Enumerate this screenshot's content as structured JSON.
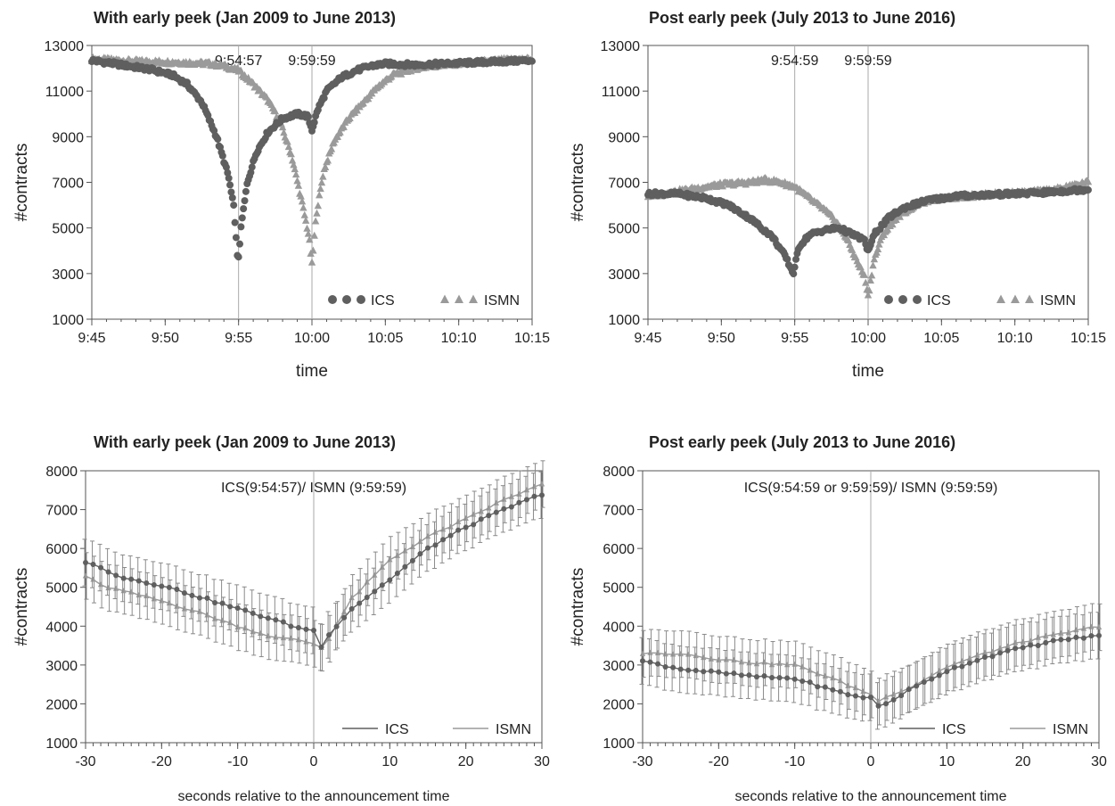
{
  "colors": {
    "ics": "#5f5f5f",
    "ismn": "#9a9a9a",
    "frame": "#555555",
    "vline": "#aaaaaa",
    "errbar": "#8a8a8a"
  },
  "chart_data": [
    {
      "type": "scatter",
      "title": "With early peek (Jan 2009 to June 2013)",
      "xlabel": "time",
      "ylabel": "#contracts",
      "xlim": [
        0,
        30
      ],
      "ylim": [
        1000,
        13000
      ],
      "xticks": [
        0,
        5,
        10,
        15,
        20,
        25,
        30
      ],
      "xticklabels": [
        "9:45",
        "9:50",
        "9:55",
        "10:00",
        "10:05",
        "10:10",
        "10:15"
      ],
      "yticks": [
        1000,
        3000,
        5000,
        7000,
        9000,
        11000,
        13000
      ],
      "yticklabels": [
        "1000",
        "3000",
        "5000",
        "7000",
        "9000",
        "11000",
        "13000"
      ],
      "vlines": [
        10,
        15
      ],
      "annotations": [
        "9:54:57",
        "9:59:59"
      ],
      "legend_position": "bottom-right",
      "legend_labels": [
        "ICS",
        "ISMN"
      ],
      "series": [
        {
          "name": "ICS",
          "marker": "circle",
          "points": [
            [
              0,
              12350
            ],
            [
              2,
              12150
            ],
            [
              4,
              11950
            ],
            [
              5.5,
              11700
            ],
            [
              6.5,
              11300
            ],
            [
              7.5,
              10500
            ],
            [
              8.5,
              9000
            ],
            [
              9.3,
              7300
            ],
            [
              9.7,
              5800
            ],
            [
              9.95,
              3400
            ],
            [
              10.2,
              5200
            ],
            [
              10.6,
              7000
            ],
            [
              11.2,
              8300
            ],
            [
              12,
              9200
            ],
            [
              13,
              9800
            ],
            [
              14,
              10000
            ],
            [
              14.7,
              9900
            ],
            [
              15,
              9300
            ],
            [
              15.4,
              10200
            ],
            [
              16,
              11000
            ],
            [
              17,
              11600
            ],
            [
              18,
              11900
            ],
            [
              19,
              12100
            ],
            [
              20,
              12200
            ],
            [
              22,
              12150
            ],
            [
              24,
              12200
            ],
            [
              26,
              12250
            ],
            [
              28,
              12300
            ],
            [
              30,
              12350
            ]
          ]
        },
        {
          "name": "ISMN",
          "marker": "triangle",
          "points": [
            [
              0,
              12400
            ],
            [
              3,
              12300
            ],
            [
              6,
              12250
            ],
            [
              8,
              12200
            ],
            [
              9,
              12100
            ],
            [
              10,
              11900
            ],
            [
              11,
              11300
            ],
            [
              12,
              10600
            ],
            [
              12.8,
              9700
            ],
            [
              13.6,
              8200
            ],
            [
              14.3,
              6200
            ],
            [
              14.8,
              4600
            ],
            [
              15,
              3400
            ],
            [
              15.3,
              5600
            ],
            [
              15.8,
              7500
            ],
            [
              16.5,
              8800
            ],
            [
              17.5,
              9800
            ],
            [
              18.5,
              10500
            ],
            [
              19.5,
              11200
            ],
            [
              20.5,
              11700
            ],
            [
              22,
              12000
            ],
            [
              24,
              12150
            ],
            [
              26,
              12250
            ],
            [
              28,
              12350
            ],
            [
              30,
              12400
            ]
          ]
        }
      ]
    },
    {
      "type": "scatter",
      "title": "Post early peek (July 2013 to June 2016)",
      "xlabel": "time",
      "ylabel": "#contracts",
      "xlim": [
        0,
        30
      ],
      "ylim": [
        1000,
        13000
      ],
      "xticks": [
        0,
        5,
        10,
        15,
        20,
        25,
        30
      ],
      "xticklabels": [
        "9:45",
        "9:50",
        "9:55",
        "10:00",
        "10:05",
        "10:10",
        "10:15"
      ],
      "yticks": [
        1000,
        3000,
        5000,
        7000,
        9000,
        11000,
        13000
      ],
      "yticklabels": [
        "1000",
        "3000",
        "5000",
        "7000",
        "9000",
        "11000",
        "13000"
      ],
      "vlines": [
        10,
        15
      ],
      "annotations": [
        "9:54:59",
        "9:59:59"
      ],
      "legend_position": "bottom-right",
      "legend_labels": [
        "ICS",
        "ISMN"
      ],
      "series": [
        {
          "name": "ICS",
          "marker": "circle",
          "points": [
            [
              0,
              6500
            ],
            [
              2,
              6500
            ],
            [
              4,
              6300
            ],
            [
              5.5,
              6000
            ],
            [
              7,
              5400
            ],
            [
              8.5,
              4600
            ],
            [
              9.4,
              3700
            ],
            [
              9.9,
              3000
            ],
            [
              10.3,
              4200
            ],
            [
              11,
              4700
            ],
            [
              12,
              4900
            ],
            [
              13,
              5000
            ],
            [
              14,
              4700
            ],
            [
              14.7,
              4500
            ],
            [
              15,
              4000
            ],
            [
              15.5,
              4800
            ],
            [
              16.5,
              5500
            ],
            [
              17.5,
              5900
            ],
            [
              19,
              6200
            ],
            [
              21,
              6400
            ],
            [
              23,
              6450
            ],
            [
              25,
              6500
            ],
            [
              27,
              6550
            ],
            [
              30,
              6700
            ]
          ]
        },
        {
          "name": "ISMN",
          "marker": "triangle",
          "points": [
            [
              0,
              6400
            ],
            [
              3,
              6700
            ],
            [
              5,
              6900
            ],
            [
              7,
              7000
            ],
            [
              8,
              7100
            ],
            [
              9,
              7000
            ],
            [
              10,
              6800
            ],
            [
              11,
              6300
            ],
            [
              12,
              5800
            ],
            [
              12.8,
              5300
            ],
            [
              13.5,
              4600
            ],
            [
              14.2,
              3600
            ],
            [
              14.8,
              2800
            ],
            [
              15,
              2000
            ],
            [
              15.4,
              3600
            ],
            [
              16,
              4700
            ],
            [
              17,
              5500
            ],
            [
              18.5,
              6100
            ],
            [
              20,
              6300
            ],
            [
              22,
              6400
            ],
            [
              24,
              6500
            ],
            [
              26,
              6550
            ],
            [
              28,
              6700
            ],
            [
              30,
              7000
            ]
          ]
        }
      ]
    },
    {
      "type": "line",
      "title": "With early peek (Jan 2009 to June 2013)",
      "xlabel": "seconds relative to the announcement time",
      "ylabel": "#contracts",
      "xlim": [
        -30,
        30
      ],
      "ylim": [
        1000,
        8000
      ],
      "xticks": [
        -30,
        -20,
        -10,
        0,
        10,
        20,
        30
      ],
      "xticklabels": [
        "-30",
        "-20",
        "-10",
        "0",
        "10",
        "20",
        "30"
      ],
      "yticks": [
        1000,
        2000,
        3000,
        4000,
        5000,
        6000,
        7000,
        8000
      ],
      "yticklabels": [
        "1000",
        "2000",
        "3000",
        "4000",
        "5000",
        "6000",
        "7000",
        "8000"
      ],
      "vlines": [
        0
      ],
      "annotations": [
        "ICS(9:54:57)/ ISMN (9:59:59)"
      ],
      "legend_position": "bottom-right",
      "legend_labels": [
        "ICS",
        "ISMN"
      ],
      "errorbar_width": 600,
      "series": [
        {
          "name": "ICS",
          "marker": "circle",
          "anchors": [
            [
              -30,
              5650
            ],
            [
              -28,
              5500
            ],
            [
              -25,
              5250
            ],
            [
              -20,
              5050
            ],
            [
              -15,
              4750
            ],
            [
              -10,
              4450
            ],
            [
              -5,
              4150
            ],
            [
              -2,
              3950
            ],
            [
              0,
              3900
            ],
            [
              1,
              3450
            ],
            [
              2,
              3800
            ],
            [
              5,
              4450
            ],
            [
              10,
              5200
            ],
            [
              15,
              6000
            ],
            [
              20,
              6550
            ],
            [
              25,
              7000
            ],
            [
              30,
              7400
            ]
          ]
        },
        {
          "name": "ISMN",
          "marker": "triangle",
          "anchors": [
            [
              -30,
              5300
            ],
            [
              -28,
              5050
            ],
            [
              -25,
              4900
            ],
            [
              -20,
              4650
            ],
            [
              -15,
              4350
            ],
            [
              -10,
              4000
            ],
            [
              -5,
              3700
            ],
            [
              -2,
              3650
            ],
            [
              0,
              3550
            ],
            [
              1,
              3450
            ],
            [
              2,
              3700
            ],
            [
              5,
              4700
            ],
            [
              10,
              5700
            ],
            [
              15,
              6300
            ],
            [
              20,
              6750
            ],
            [
              25,
              7250
            ],
            [
              30,
              7650
            ]
          ]
        }
      ]
    },
    {
      "type": "line",
      "title": "Post early peek (July 2013 to June 2016)",
      "xlabel": "seconds relative to the announcement time",
      "ylabel": "#contracts",
      "xlim": [
        -30,
        30
      ],
      "ylim": [
        1000,
        8000
      ],
      "xticks": [
        -30,
        -20,
        -10,
        0,
        10,
        20,
        30
      ],
      "xticklabels": [
        "-30",
        "-20",
        "-10",
        "0",
        "10",
        "20",
        "30"
      ],
      "yticks": [
        1000,
        2000,
        3000,
        4000,
        5000,
        6000,
        7000,
        8000
      ],
      "yticklabels": [
        "1000",
        "2000",
        "3000",
        "4000",
        "5000",
        "6000",
        "7000",
        "8000"
      ],
      "vlines": [
        0
      ],
      "annotations": [
        "ICS(9:54:59 or 9:59:59)/ ISMN (9:59:59)"
      ],
      "legend_position": "bottom-right",
      "legend_labels": [
        "ICS",
        "ISMN"
      ],
      "errorbar_width": 600,
      "series": [
        {
          "name": "ICS",
          "marker": "circle",
          "anchors": [
            [
              -30,
              3100
            ],
            [
              -25,
              2900
            ],
            [
              -20,
              2800
            ],
            [
              -15,
              2700
            ],
            [
              -10,
              2650
            ],
            [
              -5,
              2350
            ],
            [
              -2,
              2200
            ],
            [
              0,
              2150
            ],
            [
              1,
              1950
            ],
            [
              2,
              2000
            ],
            [
              5,
              2350
            ],
            [
              10,
              2850
            ],
            [
              15,
              3200
            ],
            [
              20,
              3450
            ],
            [
              25,
              3650
            ],
            [
              30,
              3750
            ]
          ]
        },
        {
          "name": "ISMN",
          "marker": "triangle",
          "anchors": [
            [
              -30,
              3300
            ],
            [
              -25,
              3300
            ],
            [
              -20,
              3150
            ],
            [
              -15,
              3050
            ],
            [
              -10,
              3000
            ],
            [
              -5,
              2650
            ],
            [
              -2,
              2400
            ],
            [
              0,
              2250
            ],
            [
              1,
              2050
            ],
            [
              2,
              2200
            ],
            [
              5,
              2400
            ],
            [
              10,
              2950
            ],
            [
              15,
              3300
            ],
            [
              20,
              3600
            ],
            [
              25,
              3800
            ],
            [
              30,
              4000
            ]
          ]
        }
      ]
    }
  ]
}
